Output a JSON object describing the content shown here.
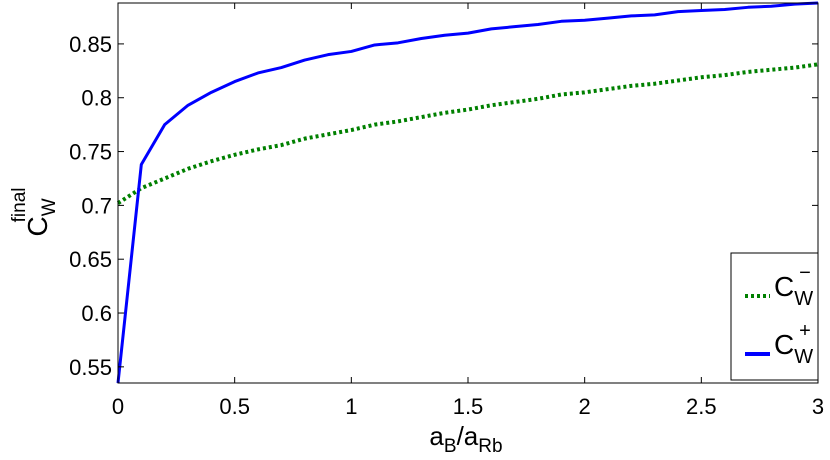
{
  "chart_data": {
    "type": "line",
    "xlabel": {
      "base": "a",
      "sub1": "B",
      "sep": "/a",
      "sub2": "Rb"
    },
    "ylabel": {
      "base": "C",
      "sub": "W",
      "sup": "final"
    },
    "xlim": [
      0,
      3
    ],
    "ylim": [
      0.535,
      0.888
    ],
    "xticks": [
      "0",
      "0.5",
      "1",
      "1.5",
      "2",
      "2.5",
      "3"
    ],
    "xtick_values": [
      0,
      0.5,
      1,
      1.5,
      2,
      2.5,
      3
    ],
    "yticks": [
      "0.55",
      "0.6",
      "0.65",
      "0.7",
      "0.75",
      "0.8",
      "0.85"
    ],
    "ytick_values": [
      0.55,
      0.6,
      0.65,
      0.7,
      0.75,
      0.8,
      0.85
    ],
    "grid": false,
    "legend_position": "bottom-right",
    "x": [
      0,
      0.1,
      0.2,
      0.3,
      0.4,
      0.5,
      0.6,
      0.7,
      0.8,
      0.9,
      1.0,
      1.1,
      1.2,
      1.3,
      1.4,
      1.5,
      1.6,
      1.7,
      1.8,
      1.9,
      2.0,
      2.1,
      2.2,
      2.3,
      2.4,
      2.5,
      2.6,
      2.7,
      2.8,
      2.9,
      3.0
    ],
    "series": [
      {
        "name": {
          "base": "C",
          "sub": "W",
          "sup": "−"
        },
        "color": "#008000",
        "style": "dotted",
        "values": [
          0.702,
          0.716,
          0.725,
          0.734,
          0.741,
          0.747,
          0.752,
          0.756,
          0.762,
          0.766,
          0.77,
          0.775,
          0.778,
          0.782,
          0.786,
          0.789,
          0.793,
          0.796,
          0.799,
          0.803,
          0.805,
          0.808,
          0.811,
          0.813,
          0.816,
          0.819,
          0.821,
          0.824,
          0.826,
          0.828,
          0.831
        ]
      },
      {
        "name": {
          "base": "C",
          "sub": "W",
          "sup": "+"
        },
        "color": "#0000ff",
        "style": "solid",
        "values": [
          0.535,
          0.738,
          0.775,
          0.793,
          0.805,
          0.815,
          0.823,
          0.828,
          0.835,
          0.84,
          0.843,
          0.849,
          0.851,
          0.855,
          0.858,
          0.86,
          0.864,
          0.866,
          0.868,
          0.871,
          0.872,
          0.874,
          0.876,
          0.877,
          0.88,
          0.881,
          0.882,
          0.884,
          0.885,
          0.887,
          0.888
        ]
      }
    ]
  }
}
